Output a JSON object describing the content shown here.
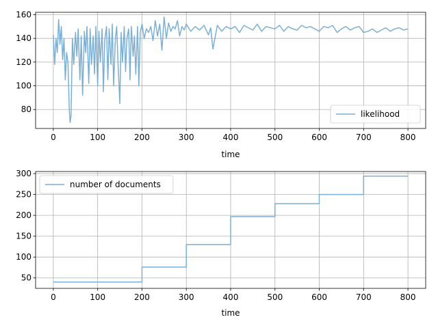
{
  "chart_data": [
    {
      "type": "line",
      "xlabel": "time",
      "ylabel": "",
      "xlim": [
        -40,
        840
      ],
      "ylim": [
        64,
        162
      ],
      "xticks": [
        0,
        100,
        200,
        300,
        400,
        500,
        600,
        700,
        800
      ],
      "yticks": [
        80,
        100,
        120,
        140,
        160
      ],
      "grid": true,
      "legend_position": "lower-right",
      "series": [
        {
          "name": "likelihood",
          "color": "#7bafd4",
          "x": [
            0,
            3,
            6,
            9,
            12,
            15,
            18,
            21,
            24,
            27,
            30,
            33,
            36,
            38,
            40,
            43,
            46,
            50,
            53,
            56,
            60,
            63,
            66,
            70,
            73,
            76,
            80,
            83,
            86,
            90,
            93,
            96,
            100,
            103,
            106,
            110,
            113,
            116,
            120,
            123,
            126,
            130,
            133,
            136,
            140,
            143,
            146,
            150,
            153,
            156,
            160,
            163,
            166,
            170,
            173,
            176,
            180,
            183,
            186,
            190,
            193,
            196,
            200,
            205,
            210,
            215,
            220,
            225,
            230,
            235,
            240,
            245,
            250,
            255,
            260,
            265,
            270,
            275,
            280,
            285,
            290,
            295,
            300,
            310,
            320,
            330,
            340,
            350,
            355,
            360,
            370,
            380,
            390,
            400,
            410,
            420,
            430,
            440,
            450,
            460,
            470,
            480,
            490,
            500,
            510,
            520,
            530,
            540,
            550,
            560,
            570,
            580,
            590,
            600,
            610,
            620,
            630,
            640,
            650,
            660,
            670,
            680,
            690,
            700,
            710,
            720,
            730,
            740,
            750,
            760,
            770,
            780,
            790,
            800
          ],
          "values": [
            143,
            118,
            140,
            128,
            156,
            135,
            150,
            122,
            140,
            105,
            128,
            120,
            80,
            69,
            75,
            140,
            118,
            145,
            125,
            148,
            105,
            142,
            92,
            146,
            128,
            150,
            102,
            148,
            118,
            142,
            110,
            150,
            100,
            146,
            120,
            148,
            95,
            138,
            150,
            105,
            148,
            118,
            152,
            100,
            140,
            150,
            118,
            85,
            145,
            120,
            150,
            112,
            140,
            148,
            105,
            150,
            125,
            142,
            110,
            150,
            100,
            145,
            152,
            140,
            148,
            145,
            150,
            138,
            155,
            142,
            152,
            130,
            158,
            140,
            153,
            146,
            150,
            148,
            155,
            142,
            150,
            147,
            152,
            146,
            150,
            147,
            151,
            143,
            149,
            131,
            151,
            146,
            150,
            148,
            150,
            145,
            151,
            149,
            147,
            152,
            146,
            150,
            149,
            148,
            151,
            146,
            150,
            148,
            147,
            151,
            149,
            150,
            148,
            146,
            150,
            149,
            151,
            145,
            148,
            150,
            147,
            149,
            150,
            145,
            146,
            148,
            145,
            147,
            149,
            146,
            148,
            149,
            147,
            148
          ]
        }
      ]
    },
    {
      "type": "line",
      "xlabel": "time",
      "ylabel": "",
      "xlim": [
        -40,
        840
      ],
      "ylim": [
        25,
        305
      ],
      "xticks": [
        0,
        100,
        200,
        300,
        400,
        500,
        600,
        700,
        800
      ],
      "yticks": [
        50,
        100,
        150,
        200,
        250,
        300
      ],
      "grid": true,
      "legend_position": "upper-left",
      "series": [
        {
          "name": "number of documents",
          "color": "#7bafd4",
          "x": [
            0,
            200,
            200,
            300,
            300,
            400,
            400,
            500,
            500,
            600,
            600,
            700,
            700,
            800
          ],
          "values": [
            40,
            40,
            76,
            76,
            130,
            130,
            197,
            197,
            228,
            228,
            250,
            250,
            294,
            294
          ]
        }
      ]
    }
  ]
}
